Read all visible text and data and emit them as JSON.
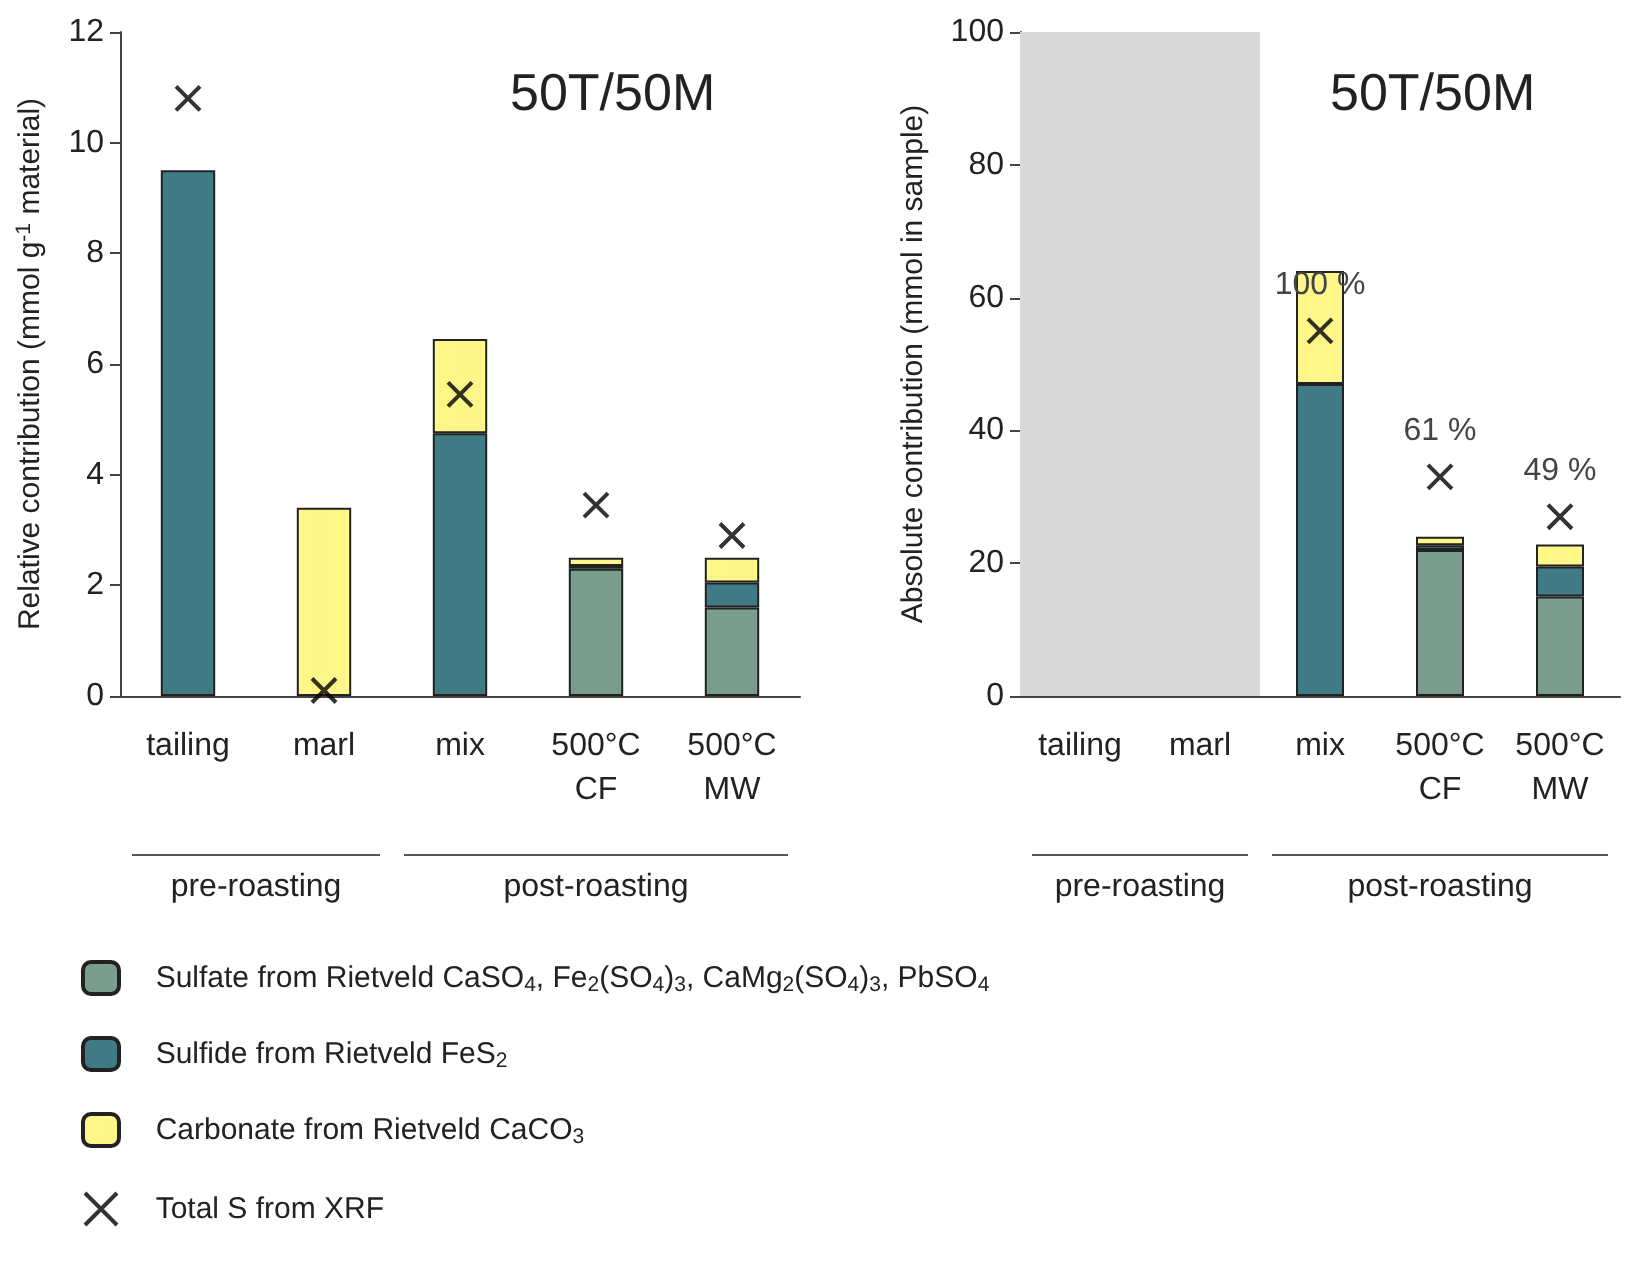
{
  "chart_data": [
    {
      "type": "bar",
      "title": "50T/50M",
      "ylabel": "Relative contribution (mmol g$^{-1}$ material)",
      "categories": [
        "tailing",
        "marl",
        "mix",
        "500°C\nCF",
        "500°C\nMW"
      ],
      "stacked": true,
      "ylim": [
        0,
        12
      ],
      "yticks": [
        0,
        2,
        4,
        6,
        8,
        10,
        12
      ],
      "grid": false,
      "legend": "bottom",
      "annotations": [
        "pre-roasting",
        "post-roasting"
      ],
      "series": [
        {
          "name": "Sulfate from Rietveld CaSO$_{4}$, Fe$_{2}$(SO$_{4}$)$_{3}$, CaMg$_{2}$(SO$_{4}$)$_{3}$, PbSO$_{4}$",
          "color": "#7a9e8e",
          "values": [
            null,
            null,
            null,
            2.3,
            1.6
          ]
        },
        {
          "name": "Sulfide from Rietveld FeS$_{2}$",
          "color": "#3f7a85",
          "values": [
            9.5,
            null,
            4.75,
            0.05,
            0.45
          ]
        },
        {
          "name": "Carbonate from Rietveld CaCO$_{3}$",
          "color": "#fff68a",
          "values": [
            null,
            3.4,
            1.7,
            0.15,
            0.45
          ]
        },
        {
          "name": "Total S from XRF",
          "type": "scatter",
          "marker": "cross",
          "color": "#000000",
          "values": [
            10.8,
            0.1,
            5.45,
            3.45,
            2.9
          ]
        }
      ]
    },
    {
      "type": "bar",
      "title": "50T/50M",
      "ylabel": "Absolute contribution (mmol in sample)",
      "categories": [
        "tailing",
        "marl",
        "mix",
        "500°C\nCF",
        "500°C\nMW"
      ],
      "stacked": true,
      "ylim": [
        0,
        100
      ],
      "yticks": [
        0,
        20,
        40,
        60,
        80,
        100
      ],
      "grid": false,
      "legend": false,
      "annotations": [
        "pre-roasting",
        "post-roasting",
        {
          "text": "100 %",
          "x": "mix",
          "y": 55
        },
        {
          "text": "61 %",
          "x": "500°C\nCF",
          "y": 33
        },
        {
          "text": "49 %",
          "x": "500°C\nMW",
          "y": 27
        }
      ],
      "bands": [
        {
          "axis": "x",
          "from": "tailing",
          "to": "tailing",
          "color": "#d9d9d9"
        },
        {
          "axis": "x",
          "from": "marl",
          "to": "marl",
          "color": "#d9d9d9"
        }
      ],
      "series": [
        {
          "color": "#7a9e8e",
          "values": [
            null,
            null,
            null,
            22,
            15
          ]
        },
        {
          "color": "#3f7a85",
          "values": [
            null,
            null,
            47,
            0.7,
            4.5
          ]
        },
        {
          "color": "#fff68a",
          "values": [
            null,
            null,
            17,
            1.3,
            3.3
          ]
        },
        {
          "type": "scatter",
          "marker": "cross",
          "color": "#000000",
          "values": [
            null,
            null,
            55,
            33,
            27
          ]
        }
      ]
    }
  ]
}
